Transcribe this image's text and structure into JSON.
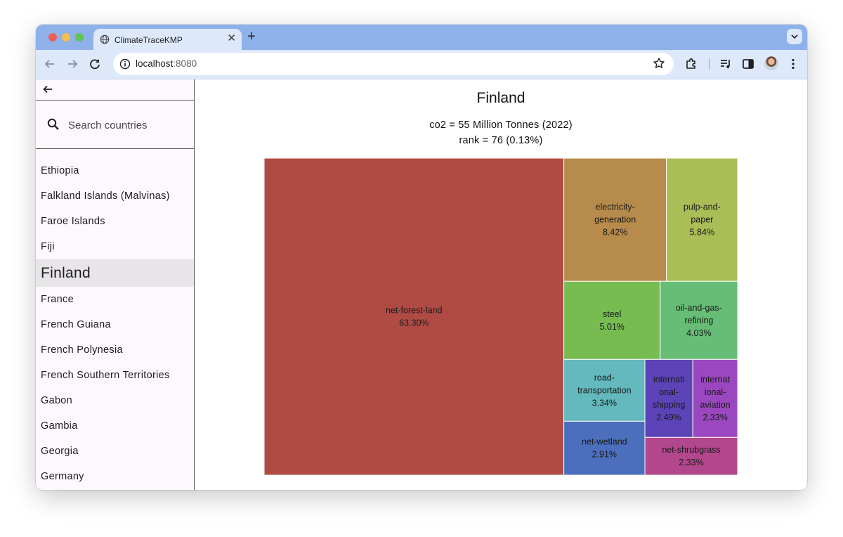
{
  "browser": {
    "tab_title": "ClimateTraceKMP",
    "close_glyph": "✕",
    "new_tab_glyph": "+",
    "url_host": "localhost",
    "url_port": ":8080"
  },
  "sidebar": {
    "search_placeholder": "Search countries",
    "countries": [
      {
        "name": "Ethiopia",
        "selected": false
      },
      {
        "name": "Falkland Islands (Malvinas)",
        "selected": false
      },
      {
        "name": "Faroe Islands",
        "selected": false
      },
      {
        "name": "Fiji",
        "selected": false
      },
      {
        "name": "Finland",
        "selected": true
      },
      {
        "name": "France",
        "selected": false
      },
      {
        "name": "French Guiana",
        "selected": false
      },
      {
        "name": "French Polynesia",
        "selected": false
      },
      {
        "name": "French Southern Territories",
        "selected": false
      },
      {
        "name": "Gabon",
        "selected": false
      },
      {
        "name": "Gambia",
        "selected": false
      },
      {
        "name": "Georgia",
        "selected": false
      },
      {
        "name": "Germany",
        "selected": false
      }
    ]
  },
  "main": {
    "country": "Finland",
    "co2_line": "co2 = 55 Million Tonnes (2022)",
    "rank_line": "rank = 76 (0.13%)"
  },
  "chart_data": {
    "type": "treemap",
    "items": [
      {
        "label": "net-forest-land",
        "value": 63.3,
        "display": "63.30%",
        "color": "#b04a45"
      },
      {
        "label": "electricity-generation",
        "value": 8.42,
        "display": "8.42%",
        "color": "#b78b4b"
      },
      {
        "label": "pulp-and-paper",
        "value": 5.84,
        "display": "5.84%",
        "color": "#aabd56"
      },
      {
        "label": "steel",
        "value": 5.01,
        "display": "5.01%",
        "color": "#77bc51"
      },
      {
        "label": "oil-and-gas-refining",
        "value": 4.03,
        "display": "4.03%",
        "color": "#67bd76"
      },
      {
        "label": "road-transportation",
        "value": 3.34,
        "display": "3.34%",
        "color": "#63b9bd"
      },
      {
        "label": "international-shipping",
        "value": 2.49,
        "display": "2.49%",
        "color": "#5c43b8"
      },
      {
        "label": "international-aviation",
        "value": 2.33,
        "display": "2.33%",
        "color": "#9a47c0"
      },
      {
        "label": "net-wetland",
        "value": 2.91,
        "display": "2.91%",
        "color": "#4c6fbd"
      },
      {
        "label": "net-shrubgrass",
        "value": 2.33,
        "display": "2.33%",
        "color": "#b3478d"
      }
    ]
  }
}
